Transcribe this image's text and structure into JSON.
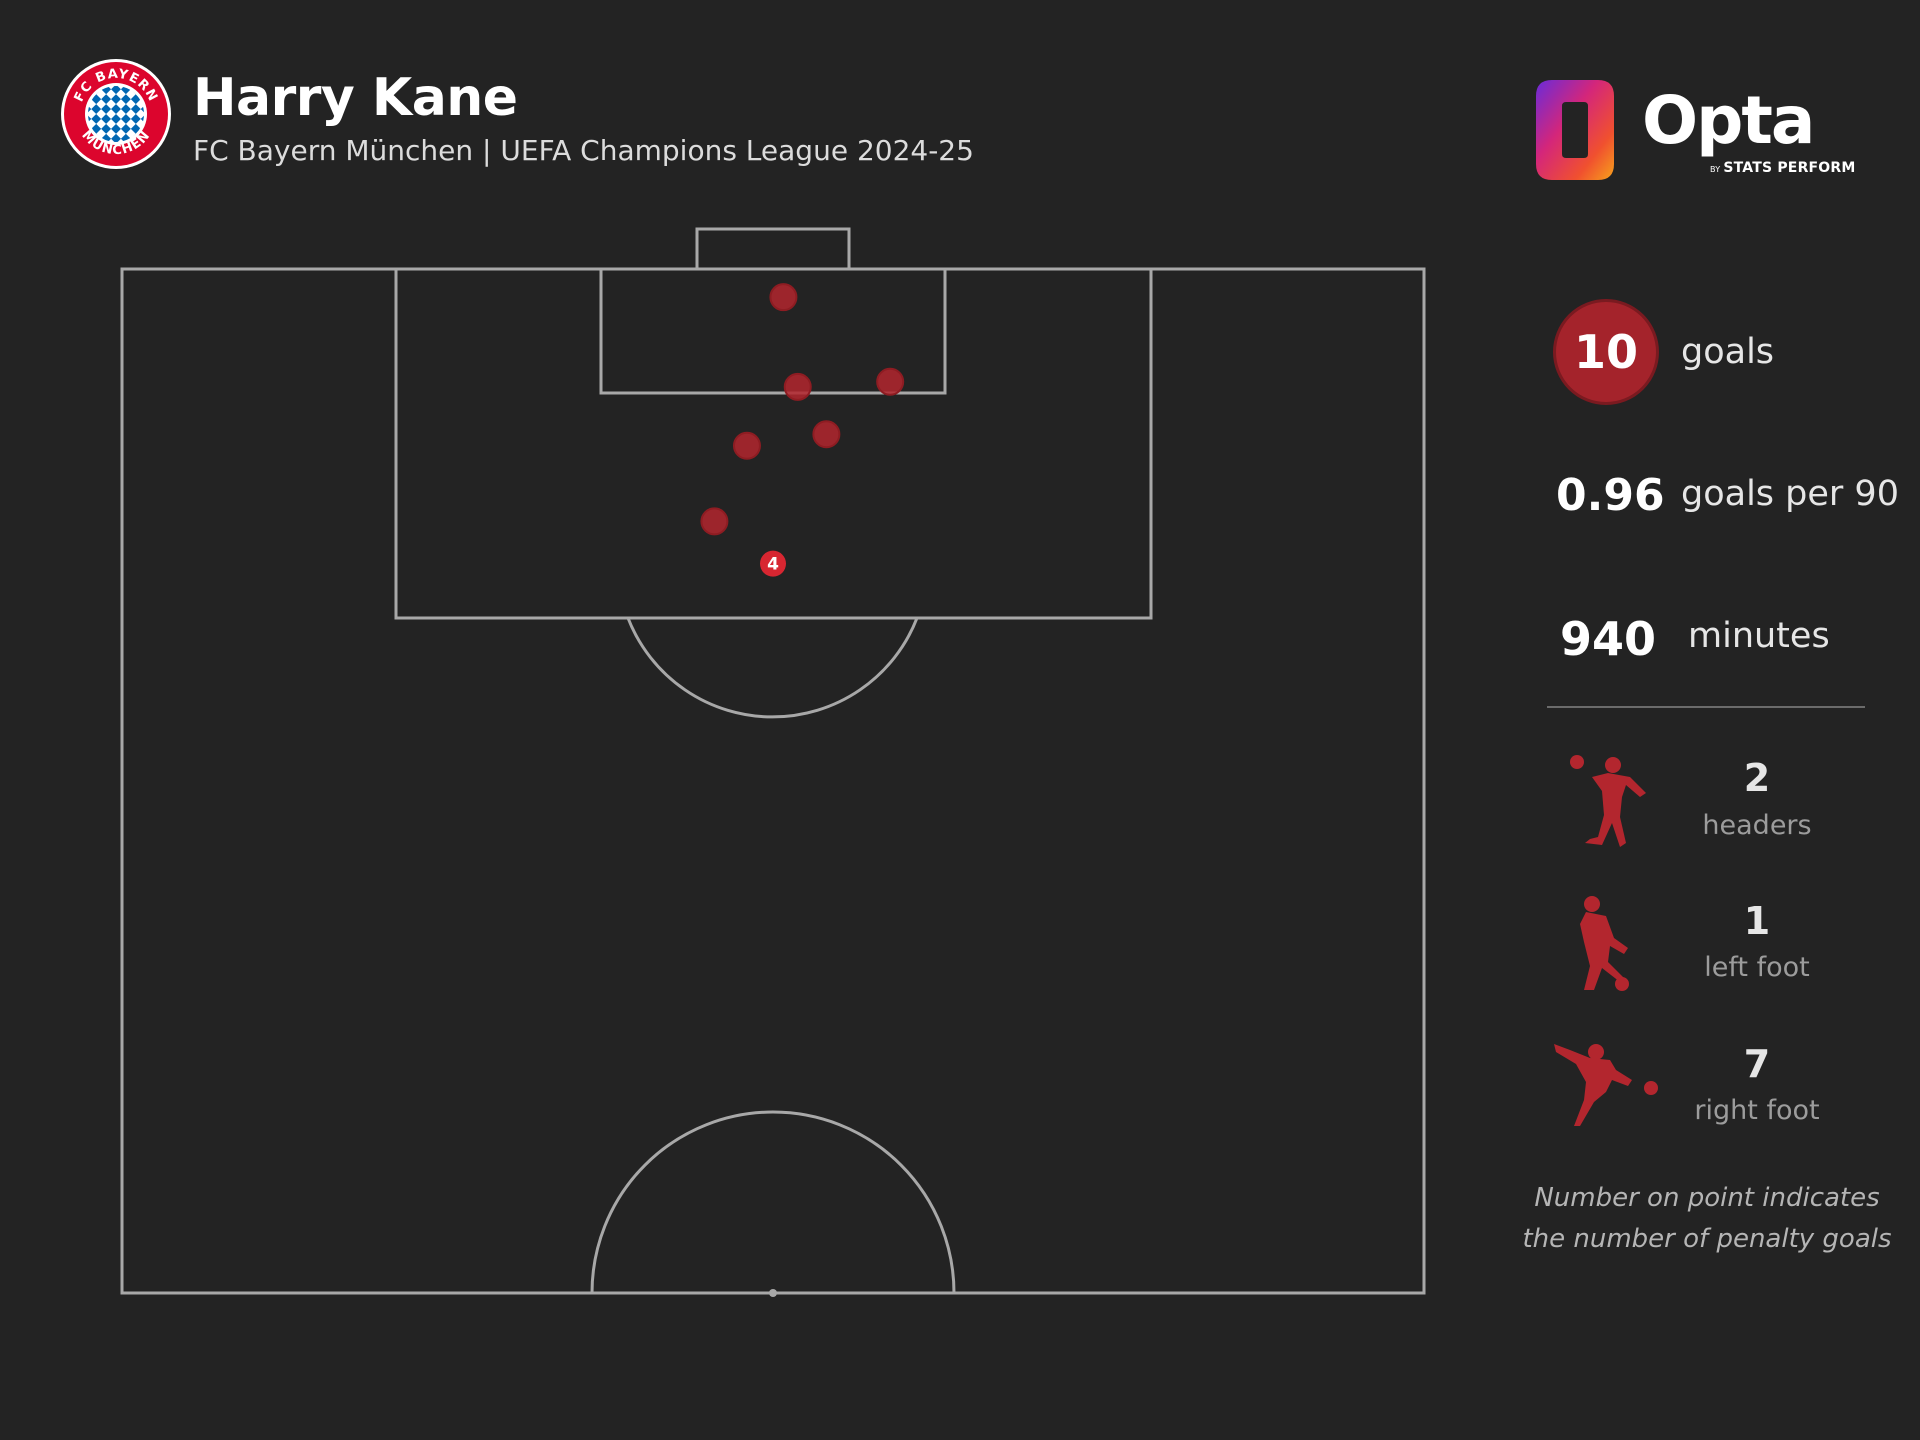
{
  "header": {
    "player_name": "Harry Kane",
    "subtitle": "FC Bayern München | UEFA Champions League 2024-25",
    "club_badge": {
      "icon": "fc-bayern-crest-icon",
      "text_top": "FC BAYERN",
      "text_bottom": "MÜNCHEN"
    }
  },
  "brand": {
    "name": "Opta",
    "tagline_by": "BY",
    "tagline": "STATS PERFORM"
  },
  "colors": {
    "background": "#232323",
    "pitch_lines": "#a8a8a8",
    "goal_dot": "#b3262e",
    "penalty_dot": "#d72631",
    "accent": "#a4232b"
  },
  "stats": {
    "goals_value": "10",
    "goals_label": "goals",
    "goals_per_90_value": "0.96",
    "goals_per_90_label": "goals per 90",
    "minutes_value": "940",
    "minutes_label": "minutes"
  },
  "shot_types": [
    {
      "icon": "header-player-icon",
      "count": "2",
      "label": "headers"
    },
    {
      "icon": "left-foot-player-icon",
      "count": "1",
      "label": "left foot"
    },
    {
      "icon": "right-foot-player-icon",
      "count": "7",
      "label": "right foot"
    }
  ],
  "note": "Number on point indicates the number of penalty goals",
  "chart_data": {
    "type": "scatter",
    "title": "Harry Kane",
    "subtitle": "FC Bayern München | UEFA Champions League 2024-25",
    "xlabel": "",
    "ylabel": "",
    "xlim": [
      0,
      100
    ],
    "ylim": [
      0,
      50
    ],
    "grid": false,
    "legend": "none",
    "series": [
      {
        "points": [
          {
            "x": 50.8,
            "y": 2.2,
            "count": 1
          },
          {
            "x": 51.9,
            "y": 9.2,
            "count": 1
          },
          {
            "x": 59.0,
            "y": 8.8,
            "count": 1
          },
          {
            "x": 48.0,
            "y": 13.8,
            "count": 1
          },
          {
            "x": 54.1,
            "y": 12.9,
            "count": 1
          },
          {
            "x": 45.5,
            "y": 19.7,
            "count": 1
          },
          {
            "x": 50.0,
            "y": 23.0,
            "count": 4,
            "label": "4",
            "penalty": true
          }
        ]
      }
    ]
  }
}
